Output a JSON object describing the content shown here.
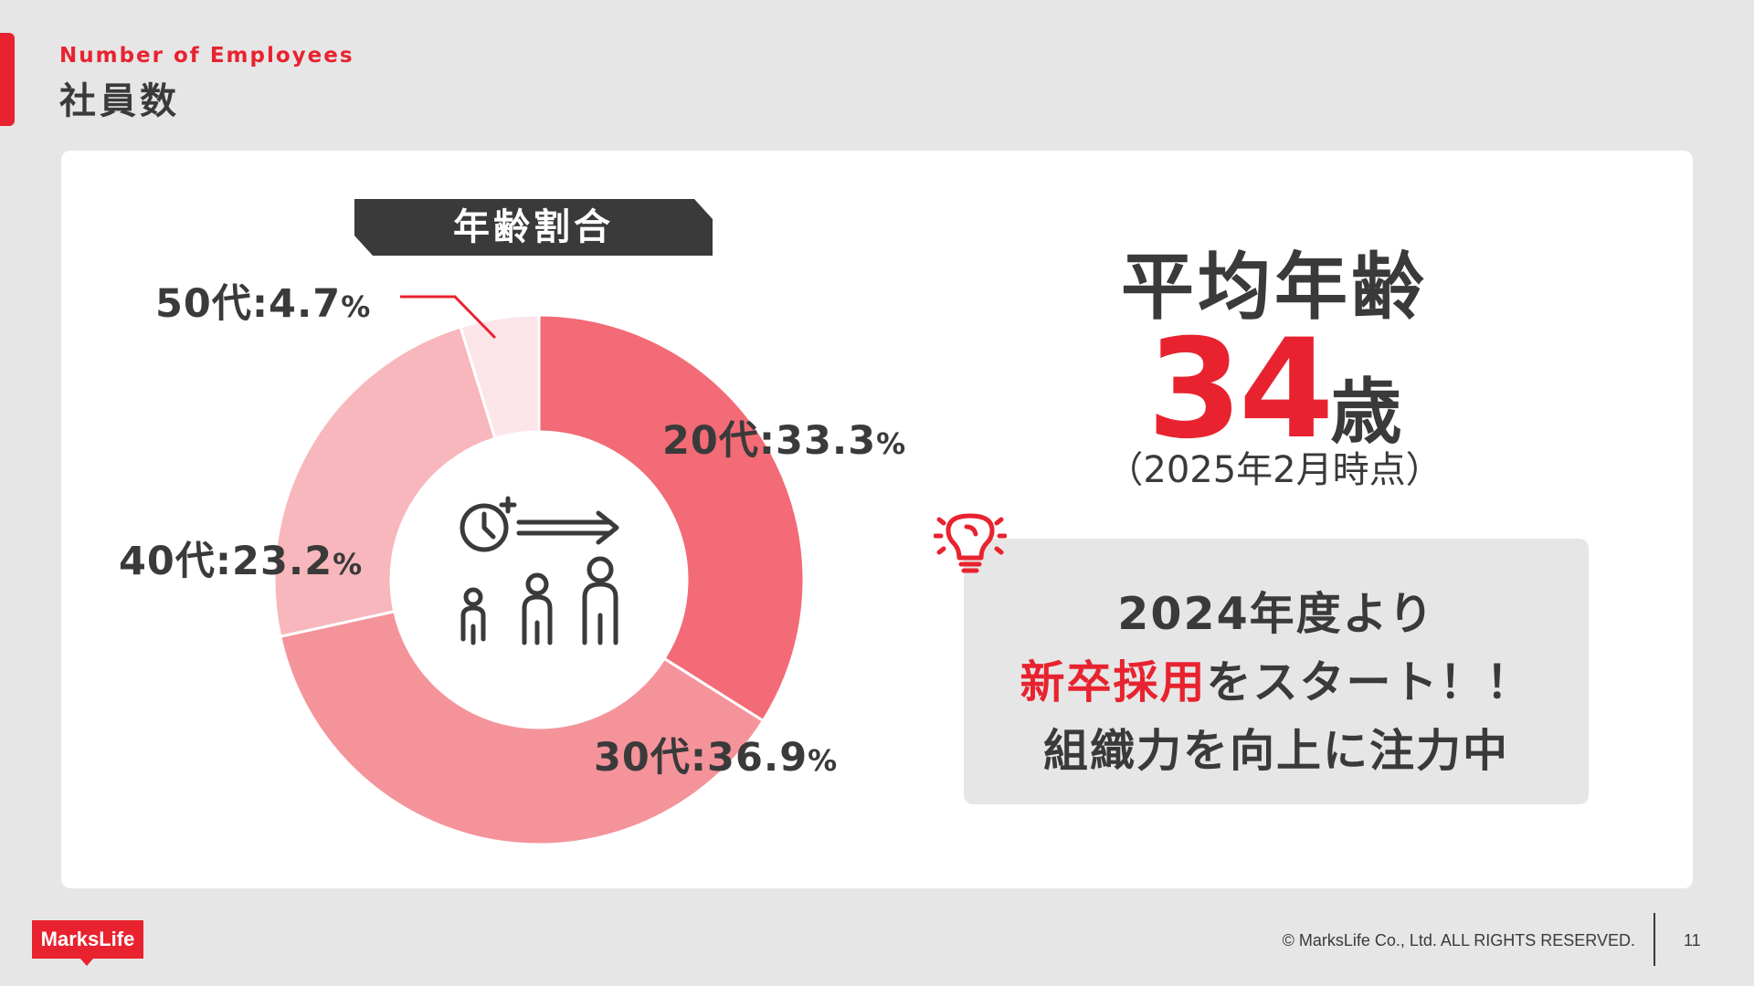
{
  "header": {
    "subtitle_en": "Number of Employees",
    "title": "社員数"
  },
  "chart_data": {
    "type": "pie",
    "donut": true,
    "title": "年齢割合",
    "start_angle": "12 o'clock, clockwise",
    "slices": [
      {
        "label": "20代",
        "value": 33.3,
        "value_text": "33.3",
        "color": "#f26b76"
      },
      {
        "label": "30代",
        "value": 36.9,
        "value_text": "36.9",
        "color": "#f5939b"
      },
      {
        "label": "40代",
        "value": 23.2,
        "value_text": "23.2",
        "color": "#f8b7bc"
      },
      {
        "label": "50代",
        "value": 4.7,
        "value_text": "4.7",
        "color": "#fce5e8"
      }
    ],
    "separator": ":",
    "unit": "%",
    "center_icon": "age-growth-icon"
  },
  "average": {
    "heading": "平均年齢",
    "number": "34",
    "unit": "歳",
    "note": "（2025年2月時点）"
  },
  "info": {
    "icon": "lightbulb-icon",
    "line1": "2024年度より",
    "line2_highlight": "新卒採用",
    "line2_rest": "をスタート！！",
    "line3": "組織力を向上に注力中"
  },
  "footer": {
    "logo": "MarksLife",
    "copyright": "© MarksLife Co., Ltd. ALL RIGHTS RESERVED.",
    "page": "11"
  },
  "colors": {
    "accent": "#e8232f",
    "text": "#3a3a3a",
    "background": "#e6e6e6",
    "ribbon": "#3a3a3a"
  }
}
